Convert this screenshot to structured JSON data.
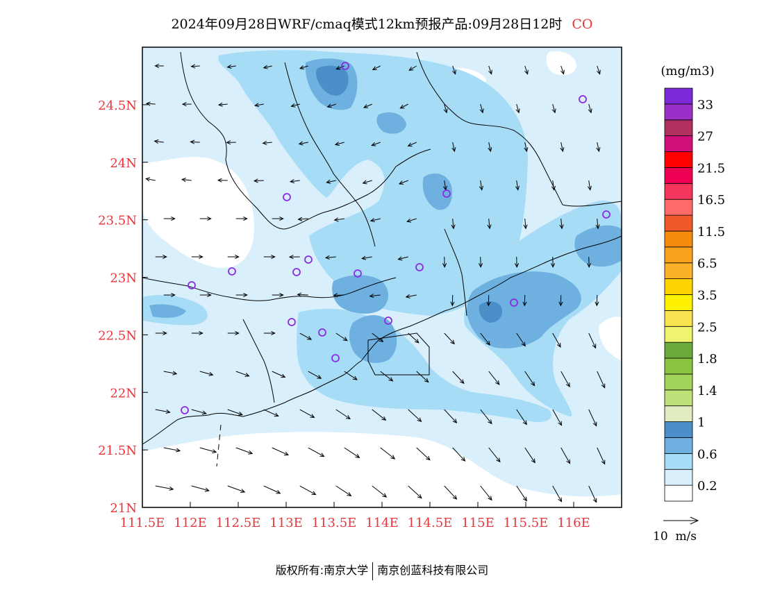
{
  "title": {
    "main": "2024年09月28日WRF/cmaq模式12km预报产品:09月28日12时",
    "species": "CO",
    "species_color": "#e8353b"
  },
  "axes": {
    "lat_labels": [
      "24.5N",
      "24N",
      "23.5N",
      "23N",
      "22.5N",
      "22N",
      "21.5N",
      "21N"
    ],
    "lon_labels": [
      "111.5E",
      "112E",
      "112.5E",
      "113E",
      "113.5E",
      "114E",
      "114.5E",
      "115E",
      "115.5E",
      "116E"
    ],
    "label_color": "#e8353b",
    "lat_range": [
      21,
      25
    ],
    "lon_range": [
      111.5,
      116.5
    ]
  },
  "legend": {
    "unit": "(mg/m3)",
    "colors": [
      "#ffffff",
      "#d9effb",
      "#a6dcf5",
      "#6eb1e0",
      "#4a8fc8",
      "#dfecc0",
      "#c0e07a",
      "#a2d35a",
      "#8ac441",
      "#6aab3c",
      "#eef46e",
      "#f8e350",
      "#fff200",
      "#ffd400",
      "#fbb12a",
      "#f8a21d",
      "#f58b0c",
      "#ef5a28",
      "#ff6a6a",
      "#f5365c",
      "#f00055",
      "#ff0000",
      "#d0107a",
      "#b23060",
      "#9a30c8",
      "#7b2ad8"
    ],
    "labels": [
      "0.2",
      "0.6",
      "1",
      "1.4",
      "1.8",
      "2.5",
      "3.5",
      "6.5",
      "11.5",
      "16.5",
      "21.5",
      "27",
      "33"
    ]
  },
  "wind_scale": {
    "label": "10  m/s"
  },
  "stations_color": "#8a2be2",
  "footer": {
    "left": "版权所有:南京大学",
    "right": "南京创蓝科技有限公司"
  }
}
